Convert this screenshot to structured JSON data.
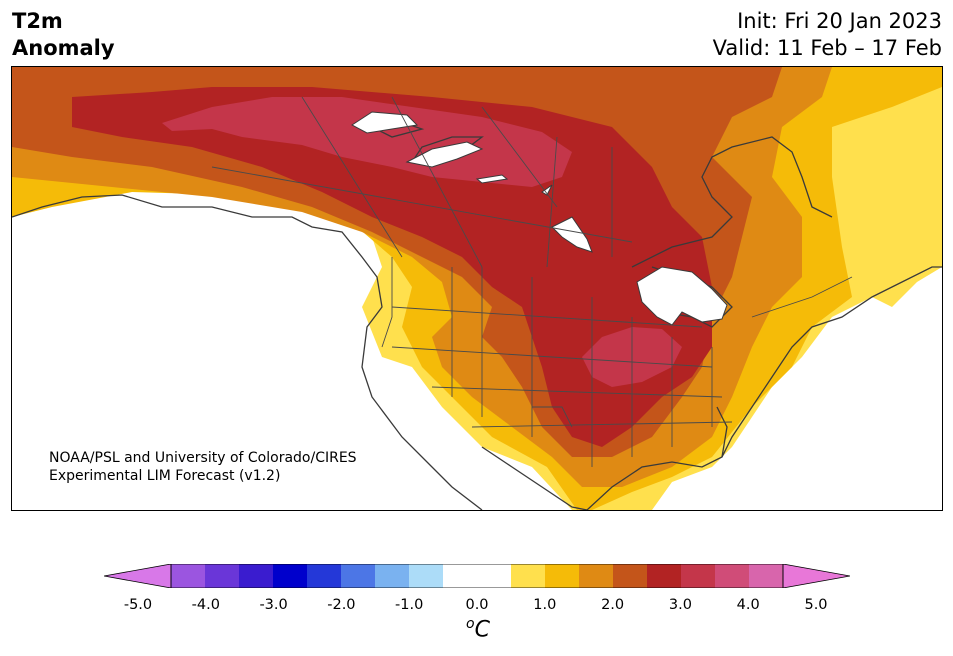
{
  "title": {
    "left_line1": "T2m",
    "left_line2": "Anomaly",
    "init": "Init: Fri 20 Jan 2023",
    "valid": "Valid: 11 Feb – 17 Feb"
  },
  "credit": {
    "line1": "NOAA/PSL and University of Colorado/CIRES",
    "line2": "Experimental LIM Forecast (v1.2)"
  },
  "colorbar": {
    "units_sup": "o",
    "units_main": "C",
    "tick_labels": [
      "-5.0",
      "-4.0",
      "-3.0",
      "-2.0",
      "-1.0",
      "0.0",
      "1.0",
      "2.0",
      "3.0",
      "4.0",
      "5.0"
    ],
    "tick_values": [
      -5,
      -4,
      -3,
      -2,
      -1,
      0,
      1,
      2,
      3,
      4,
      5
    ],
    "min": -5,
    "max": 5,
    "bins": [
      {
        "from": -5.0,
        "to": -4.5,
        "color": "#cf6fe6"
      },
      {
        "from": -4.5,
        "to": -4.0,
        "color": "#9b55e0"
      },
      {
        "from": -4.0,
        "to": -3.5,
        "color": "#6a36d8"
      },
      {
        "from": -3.5,
        "to": -3.0,
        "color": "#3a1ccf"
      },
      {
        "from": -3.0,
        "to": -2.5,
        "color": "#0000cc"
      },
      {
        "from": -2.5,
        "to": -2.0,
        "color": "#2438d8"
      },
      {
        "from": -2.0,
        "to": -1.5,
        "color": "#4c76e6"
      },
      {
        "from": -1.5,
        "to": -1.0,
        "color": "#7ab2f0"
      },
      {
        "from": -1.0,
        "to": -0.5,
        "color": "#acdcf8"
      },
      {
        "from": -0.5,
        "to": 0.0,
        "color": "#ffffff"
      },
      {
        "from": 0.0,
        "to": 0.5,
        "color": "#ffffff"
      },
      {
        "from": 0.5,
        "to": 1.0,
        "color": "#ffe04d"
      },
      {
        "from": 1.0,
        "to": 1.5,
        "color": "#f5bb08"
      },
      {
        "from": 1.5,
        "to": 2.0,
        "color": "#df8a14"
      },
      {
        "from": 2.0,
        "to": 2.5,
        "color": "#c4551a"
      },
      {
        "from": 2.5,
        "to": 3.0,
        "color": "#b22323"
      },
      {
        "from": 3.0,
        "to": 3.5,
        "color": "#c4364a"
      },
      {
        "from": 3.5,
        "to": 4.0,
        "color": "#d04c78"
      },
      {
        "from": 4.0,
        "to": 4.5,
        "color": "#d865ac"
      },
      {
        "from": 4.5,
        "to": 5.0,
        "color": "#e877d8"
      }
    ],
    "under_color": "#d878e8",
    "over_color": "#e877d8"
  },
  "map": {
    "projection": "Lambert conformal (North America)",
    "land_outline_color": "#3a3a3a",
    "ocean_color": "#ffffff"
  }
}
